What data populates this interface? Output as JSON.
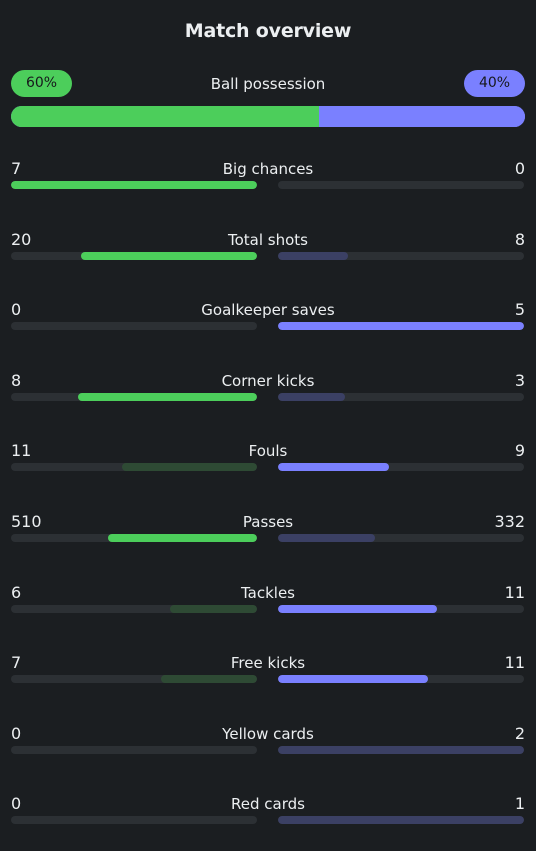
{
  "title": "Match overview",
  "colors": {
    "home": "#4cce5b",
    "away": "#7a80ff",
    "home_dim": "#2e4a34",
    "away_dim": "#3b4064",
    "track": "#2c3034",
    "background": "#1b1e21"
  },
  "possession": {
    "label": "Ball possession",
    "home": "60%",
    "away": "40%",
    "home_fraction": 0.6
  },
  "stats": [
    {
      "label": "Big chances",
      "home": "7",
      "away": "0",
      "home_frac": 1.0,
      "away_frac": 0.0,
      "winner": "home"
    },
    {
      "label": "Total shots",
      "home": "20",
      "away": "8",
      "home_frac": 0.714,
      "away_frac": 0.286,
      "winner": "home"
    },
    {
      "label": "Goalkeeper saves",
      "home": "0",
      "away": "5",
      "home_frac": 0.0,
      "away_frac": 1.0,
      "winner": "away"
    },
    {
      "label": "Corner kicks",
      "home": "8",
      "away": "3",
      "home_frac": 0.727,
      "away_frac": 0.273,
      "winner": "home"
    },
    {
      "label": "Fouls",
      "home": "11",
      "away": "9",
      "home_frac": 0.55,
      "away_frac": 0.45,
      "winner": "away"
    },
    {
      "label": "Passes",
      "home": "510",
      "away": "332",
      "home_frac": 0.606,
      "away_frac": 0.394,
      "winner": "home"
    },
    {
      "label": "Tackles",
      "home": "6",
      "away": "11",
      "home_frac": 0.353,
      "away_frac": 0.647,
      "winner": "away"
    },
    {
      "label": "Free kicks",
      "home": "7",
      "away": "11",
      "home_frac": 0.389,
      "away_frac": 0.611,
      "winner": "away"
    },
    {
      "label": "Yellow cards",
      "home": "0",
      "away": "2",
      "home_frac": 0.0,
      "away_frac": 1.0,
      "winner": "home"
    },
    {
      "label": "Red cards",
      "home": "0",
      "away": "1",
      "home_frac": 0.0,
      "away_frac": 1.0,
      "winner": "home"
    }
  ]
}
